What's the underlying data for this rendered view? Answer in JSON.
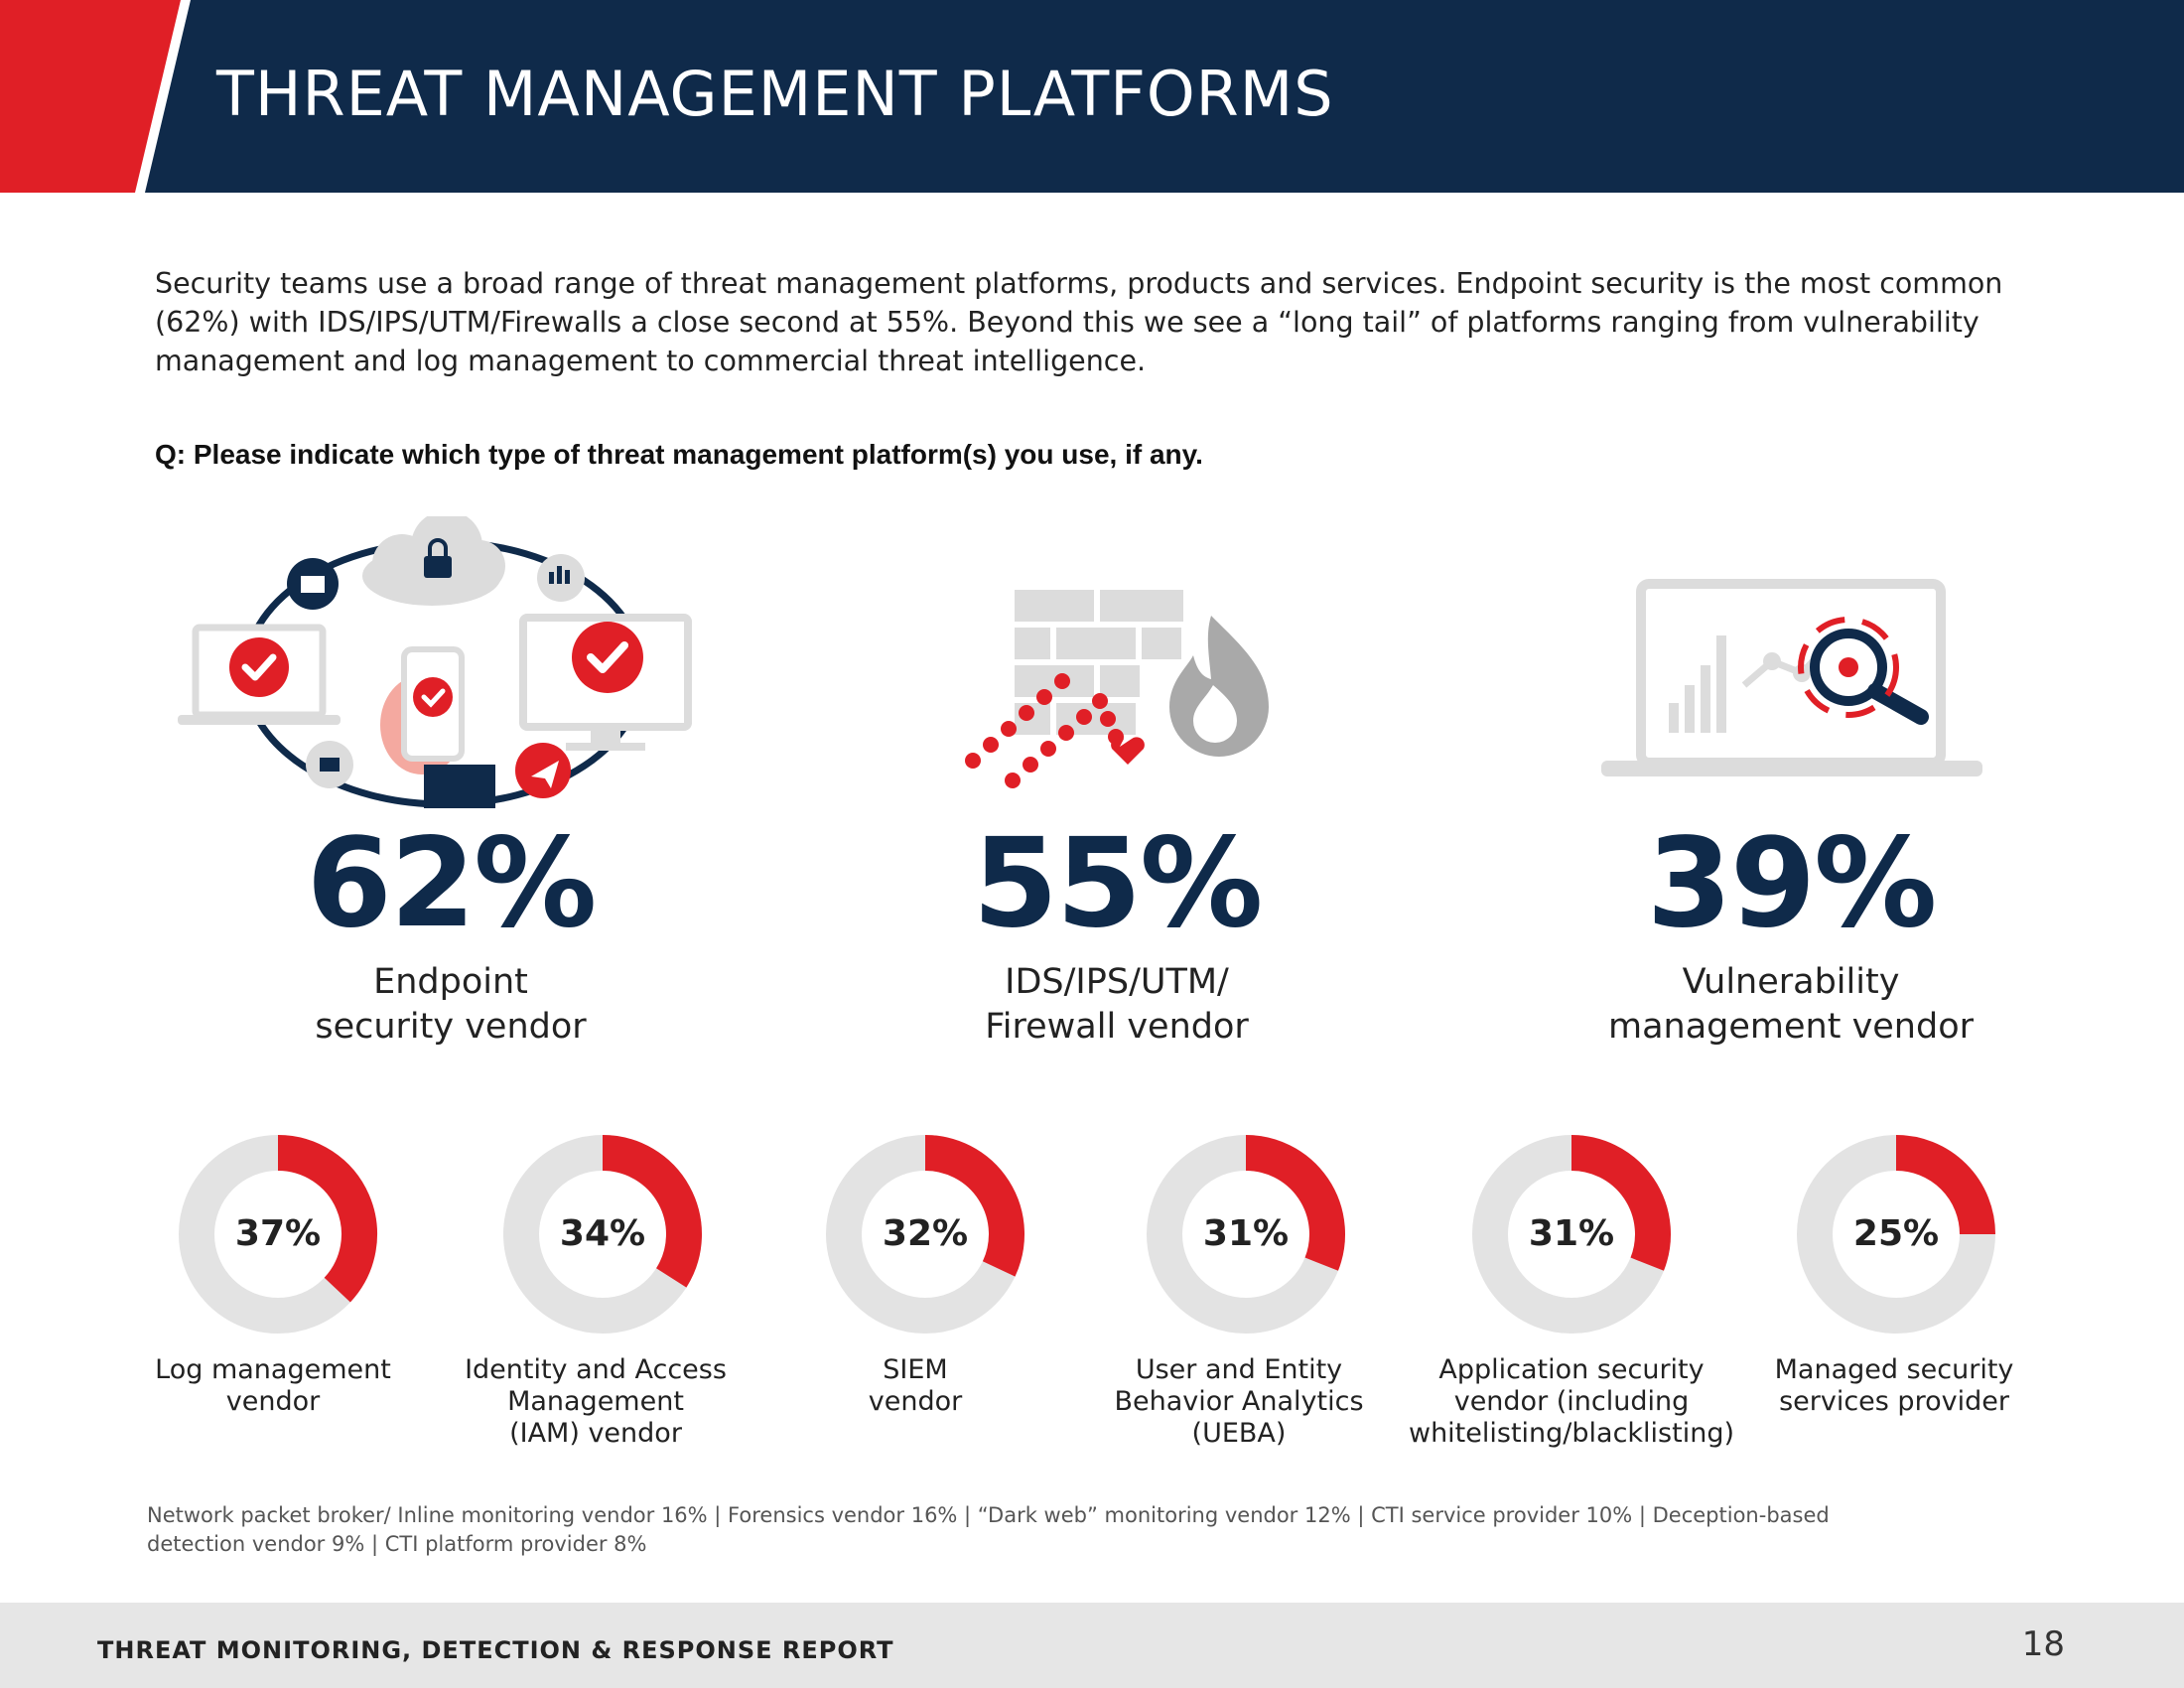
{
  "header": {
    "title": "THREAT MANAGEMENT PLATFORMS"
  },
  "intro": "Security teams use a broad range of threat management platforms, products and services. Endpoint security is the most common (62%) with IDS/IPS/UTM/Firewalls a close second at 55%. Beyond this we see a “long tail” of platforms ranging from vulnerability management and log management to commercial threat intelligence.",
  "question": "Q: Please indicate which type of threat management platform(s) you use, if any.",
  "colors": {
    "navy": "#0f2a4a",
    "red": "#e01f26",
    "gray": "#e3e3e3"
  },
  "top_stats": [
    {
      "value": "62%",
      "label_line1": "Endpoint",
      "label_line2": "security vendor",
      "icon": "endpoint-devices-icon"
    },
    {
      "value": "55%",
      "label_line1": "IDS/IPS/UTM/",
      "label_line2": "Firewall vendor",
      "icon": "firewall-icon"
    },
    {
      "value": "39%",
      "label_line1": "Vulnerability",
      "label_line2": "management vendor",
      "icon": "vulnerability-scan-icon"
    }
  ],
  "donuts": [
    {
      "value": "37%",
      "percent": 37,
      "label_line1": "Log management",
      "label_line2": "vendor",
      "label_line3": ""
    },
    {
      "value": "34%",
      "percent": 34,
      "label_line1": "Identity and Access",
      "label_line2": "Management",
      "label_line3": "(IAM) vendor"
    },
    {
      "value": "32%",
      "percent": 32,
      "label_line1": "SIEM",
      "label_line2": "vendor",
      "label_line3": ""
    },
    {
      "value": "31%",
      "percent": 31,
      "label_line1": "User and Entity",
      "label_line2": "Behavior Analytics",
      "label_line3": "(UEBA)"
    },
    {
      "value": "31%",
      "percent": 31,
      "label_line1": "Application security",
      "label_line2": "vendor (including",
      "label_line3": "whitelisting/blacklisting)"
    },
    {
      "value": "25%",
      "percent": 25,
      "label_line1": "Managed security",
      "label_line2": "services provider",
      "label_line3": ""
    }
  ],
  "others_line1": "Network packet broker/ Inline monitoring vendor 16%  |  Forensics vendor 16%  |  “Dark web” monitoring vendor 12%  |  CTI  service provider 10%  |  Deception-based",
  "others_line2": "detection vendor 9%  |  CTI platform provider 8%",
  "footer": {
    "title": "THREAT MONITORING, DETECTION & RESPONSE REPORT",
    "page": "18"
  }
}
